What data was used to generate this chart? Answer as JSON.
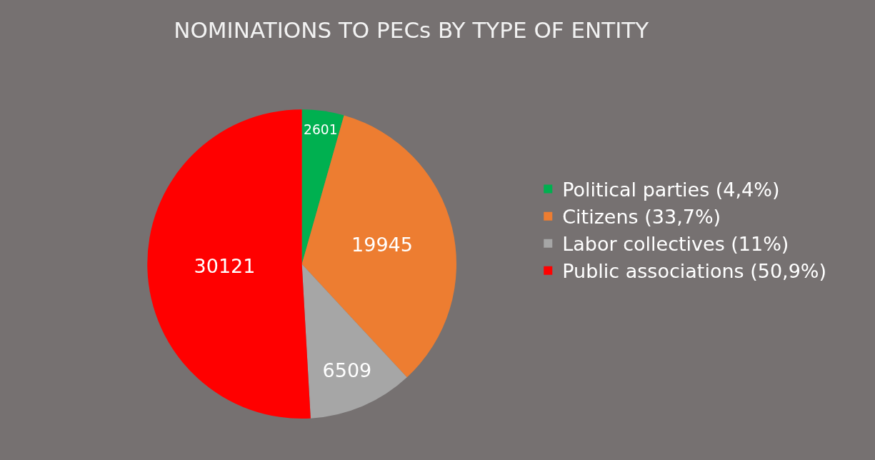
{
  "chart_data": {
    "type": "pie",
    "title": "NOMINATIONS TO PECs BY TYPE OF ENTITY",
    "categories": [
      "Political parties (4,4%)",
      "Citizens (33,7%)",
      "Labor collectives (11%)",
      "Public associations (50,9%)"
    ],
    "values": [
      2601,
      19945,
      6509,
      30121
    ],
    "colors": [
      "#00b050",
      "#ed7d31",
      "#a6a6a6",
      "#ff0000"
    ],
    "data_labels": true,
    "legend": "right"
  }
}
